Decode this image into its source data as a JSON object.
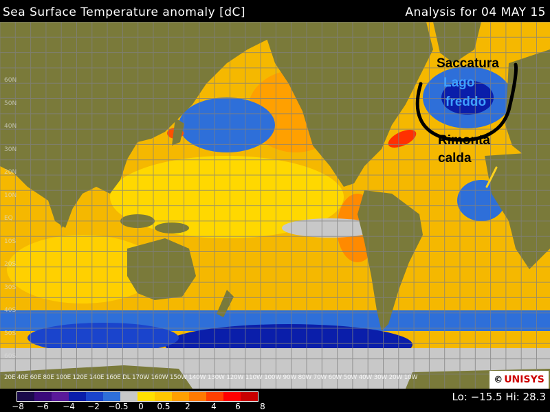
{
  "title": {
    "left": "Sea Surface Temperature anomaly [dC]",
    "right": "Analysis for 04 MAY 15"
  },
  "colors": {
    "ocean_warm": "#f5b800",
    "ocean_mild": "#ffd800",
    "ocean_hot": "#ff9a00",
    "ocean_cool": "#2e6fd9",
    "ocean_cold": "#0a1eaa",
    "ice_gray": "#c8c8c8",
    "land": "#7a7a3a",
    "grid": "#808080",
    "annotation_black": "#000000",
    "annotation_blue": "#3fa0ff",
    "annotation_yellow": "#ffd21f"
  },
  "annotations": {
    "saccatura": "Saccatura",
    "lago": "Lago",
    "freddo": "freddo",
    "rimonta": "Rimonta",
    "calda": "calda"
  },
  "legend": {
    "colors": [
      "#1a0a4a",
      "#3a0a7a",
      "#5a1a9a",
      "#0a1eaa",
      "#1a44cc",
      "#2e6fd9",
      "#c8c8c8",
      "#ffe000",
      "#ffc800",
      "#ffa000",
      "#ff7a00",
      "#ff4000",
      "#ff0000",
      "#c80000"
    ],
    "ticks": [
      "−8",
      "−6",
      "−4",
      "−2",
      "−0.5",
      "0",
      "0.5",
      "2",
      "4",
      "6",
      "8"
    ]
  },
  "lohi_text": "Lo: −15.5  Hi: 28.3",
  "logo": {
    "copyright": "©",
    "name": "UNISYS"
  },
  "longitude_labels": "20E 40E 60E 80E 100E 120E 140E 160E DL 170W 160W 150W 140W 130W 120W 110W 100W 90W 80W 70W 60W 50W 40W 30W 20W 10W",
  "latitude_labels": [
    "60N",
    "50N",
    "40N",
    "30N",
    "20N",
    "10N",
    "EQ",
    "10S",
    "20S",
    "30S",
    "40S",
    "50S",
    "60S"
  ]
}
